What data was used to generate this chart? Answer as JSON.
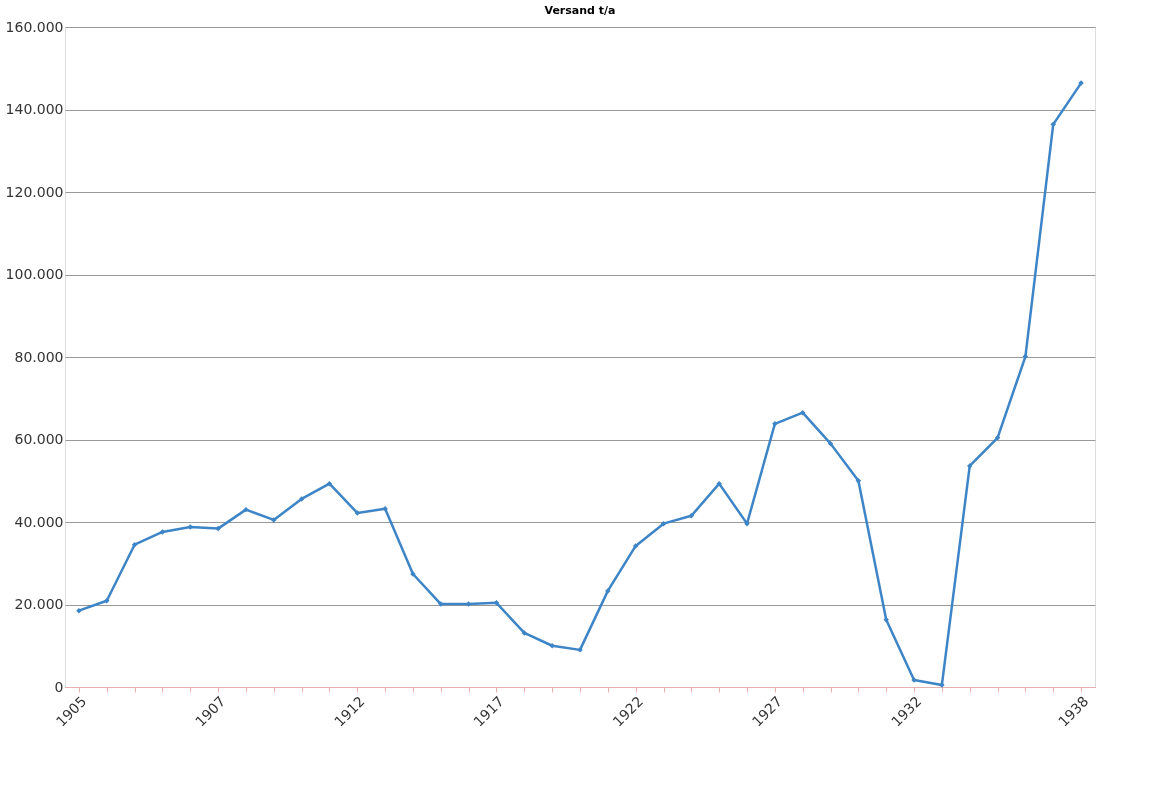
{
  "chart_data": {
    "type": "line",
    "title": "Versand t/a",
    "categories": [
      "1905",
      null,
      null,
      null,
      null,
      "1907",
      null,
      null,
      null,
      null,
      "1912",
      null,
      null,
      null,
      null,
      "1917",
      null,
      null,
      null,
      null,
      "1922",
      null,
      null,
      null,
      null,
      "1927",
      null,
      null,
      null,
      null,
      "1932",
      null,
      null,
      null,
      null,
      null,
      "1938"
    ],
    "series": [
      {
        "color": "#3d85c6",
        "values": [
          18500,
          20900,
          34500,
          37600,
          38800,
          38400,
          43000,
          40500,
          45600,
          49300,
          42200,
          43200,
          27400,
          20100,
          20100,
          20400,
          13100,
          10000,
          9000,
          23300,
          34200,
          39600,
          41500,
          49300,
          39600,
          63800,
          66500,
          59000,
          50000,
          16300,
          1700,
          500,
          53600,
          60400,
          80100,
          136400,
          146400
        ]
      }
    ],
    "ylim": [
      0,
      160000
    ],
    "yticks": [
      {
        "value": 0,
        "label": "0"
      },
      {
        "value": 20000,
        "label": "20.000"
      },
      {
        "value": 40000,
        "label": "40.000"
      },
      {
        "value": 60000,
        "label": "60.000"
      },
      {
        "value": 80000,
        "label": "80.000"
      },
      {
        "value": 100000,
        "label": "100.000"
      },
      {
        "value": 120000,
        "label": "120.000"
      },
      {
        "value": 140000,
        "label": "140.000"
      },
      {
        "value": 160000,
        "label": "160.000"
      }
    ],
    "grid": "y",
    "marker": "diamond",
    "line_style": "solid"
  }
}
